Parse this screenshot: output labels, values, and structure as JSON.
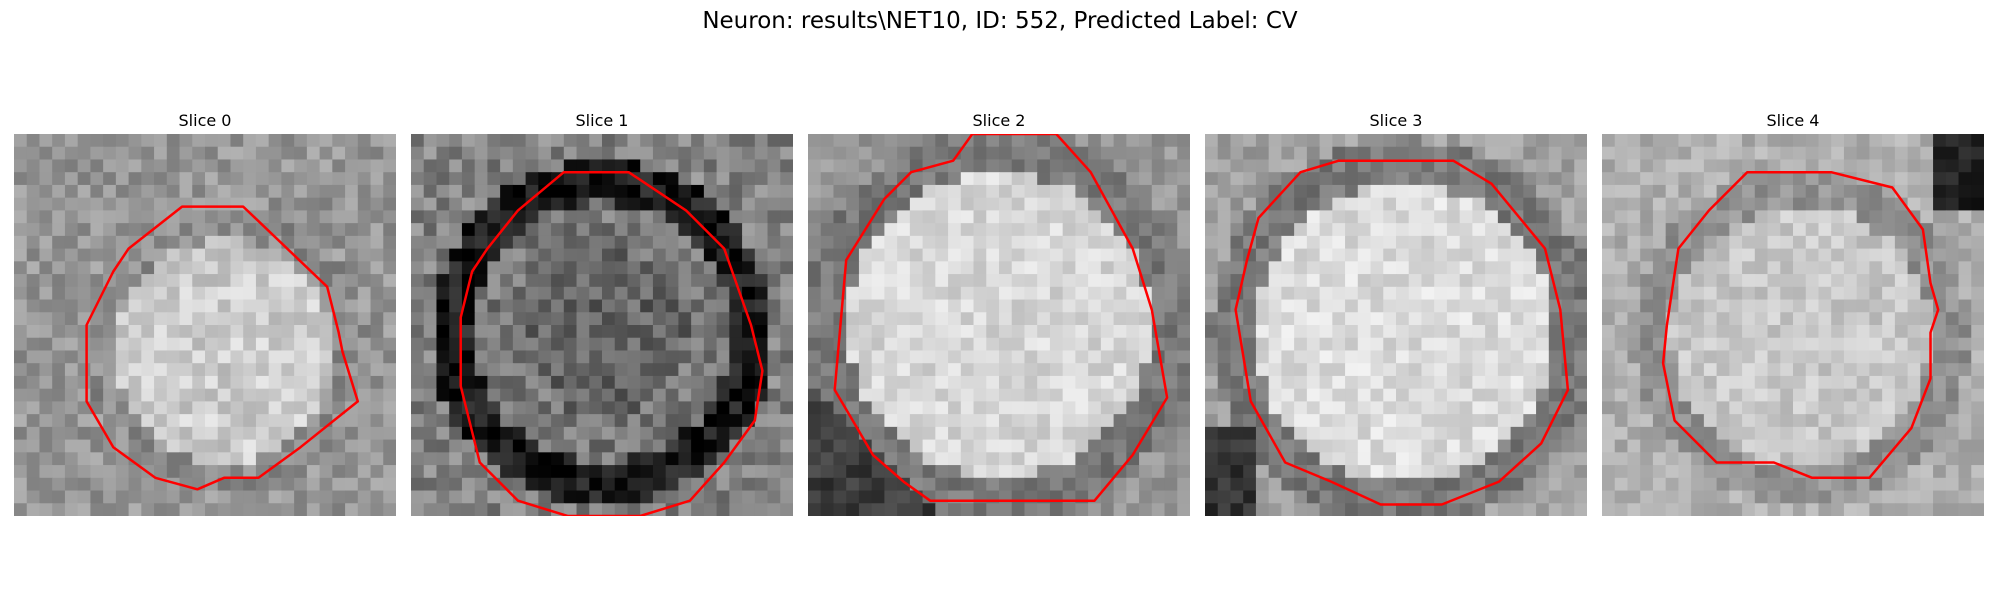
{
  "title": "Neuron: results\\NET10, ID: 552, Predicted Label: CV",
  "contour_color": "#ff0000",
  "slices": [
    {
      "label": "Slice 0",
      "style": "mottled gray, brighter blob in center"
    },
    {
      "label": "Slice 1",
      "style": "dark ring around bright textured cell with dark interior"
    },
    {
      "label": "Slice 2",
      "style": "large bright cell filling most of the frame"
    },
    {
      "label": "Slice 3",
      "style": "large bright cell with gray border"
    },
    {
      "label": "Slice 4",
      "style": "bright cell with dark corner top-right"
    }
  ]
}
